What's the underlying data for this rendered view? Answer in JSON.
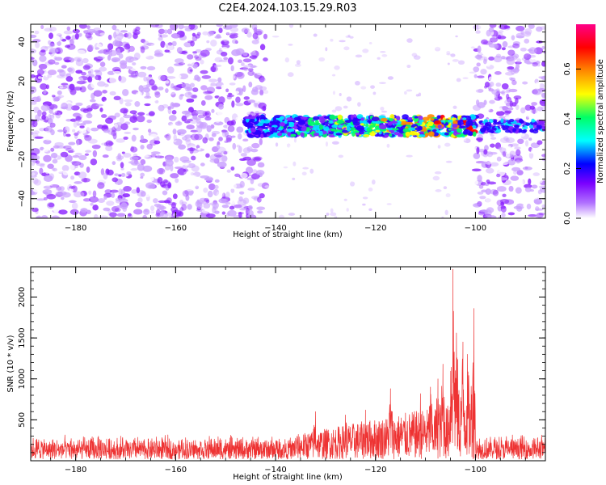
{
  "title": "C2E4.2024.103.15.29.R03",
  "chart_data": [
    {
      "type": "heatmap",
      "xlabel": "Height of straight line (km)",
      "ylabel": "Frequency (Hz)",
      "xlim": [
        -189,
        -86
      ],
      "ylim": [
        -50,
        49
      ],
      "xticks": [
        -180,
        -160,
        -140,
        -120,
        -100
      ],
      "yticks": [
        -40,
        -20,
        0,
        20,
        40
      ],
      "grid": false,
      "colorbar": {
        "label": "Normalized spectral amplitude",
        "range": [
          0,
          0.78
        ],
        "ticks": [
          0.0,
          0.2,
          0.4,
          0.6
        ],
        "colormap": [
          "#ffffff",
          "#7a00ff",
          "#0000ff",
          "#00ffff",
          "#00ff66",
          "#ffff00",
          "#ff8800",
          "#ff0000",
          "#ff0088"
        ]
      },
      "features": [
        {
          "name": "background noise",
          "x_range": [
            -189,
            -142
          ],
          "amplitude": [
            0.02,
            0.2
          ]
        },
        {
          "name": "echo band",
          "x_range": [
            -146,
            -100
          ],
          "freq_range": [
            -8,
            2
          ],
          "amplitude_peak": 0.75
        },
        {
          "name": "background noise",
          "x_range": [
            -100,
            -86
          ],
          "amplitude": [
            0.02,
            0.2
          ]
        }
      ]
    },
    {
      "type": "line",
      "xlabel": "Height of straight line (km)",
      "ylabel": "SNR (10 * v/v)",
      "xlim": [
        -189,
        -86
      ],
      "ylim": [
        0,
        2370
      ],
      "xticks": [
        -180,
        -160,
        -140,
        -120,
        -100
      ],
      "yticks": [
        500,
        1000,
        1500,
        2000
      ],
      "grid": false,
      "color": "#ee3333",
      "peaks": [
        {
          "x": -104.5,
          "y": 2340
        },
        {
          "x": -100.3,
          "y": 1860
        },
        {
          "x": -103.8,
          "y": 1560
        },
        {
          "x": -102.5,
          "y": 1450
        },
        {
          "x": -101.6,
          "y": 1300
        },
        {
          "x": -106.5,
          "y": 1180
        },
        {
          "x": -107.5,
          "y": 1000
        },
        {
          "x": -109.0,
          "y": 900
        },
        {
          "x": -111.0,
          "y": 820
        },
        {
          "x": -117.0,
          "y": 880
        },
        {
          "x": -122.0,
          "y": 620
        },
        {
          "x": -126.0,
          "y": 560
        },
        {
          "x": -132.0,
          "y": 600
        }
      ],
      "baseline": {
        "x_range": [
          -189,
          -136
        ],
        "y_range": [
          0,
          300
        ]
      },
      "tail": {
        "x_range": [
          -100,
          -86
        ],
        "y_range": [
          0,
          320
        ]
      }
    }
  ]
}
